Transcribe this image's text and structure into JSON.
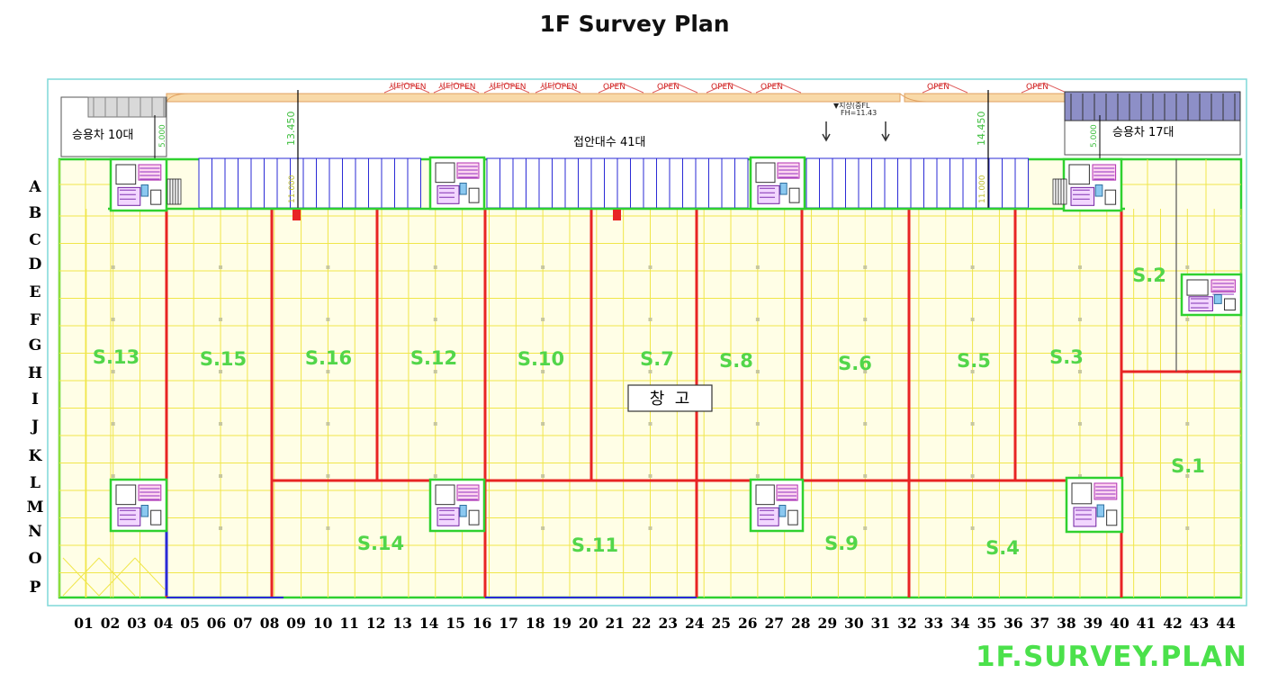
{
  "title": "1F Survey Plan",
  "watermark": "1F.SURVEY.PLAN",
  "rows": [
    "A",
    "B",
    "C",
    "D",
    "E",
    "F",
    "G",
    "H",
    "I",
    "J",
    "K",
    "L",
    "M",
    "N",
    "O",
    "P"
  ],
  "columns": [
    "01",
    "02",
    "03",
    "04",
    "05",
    "06",
    "07",
    "08",
    "09",
    "10",
    "11",
    "12",
    "13",
    "14",
    "15",
    "16",
    "17",
    "18",
    "19",
    "20",
    "21",
    "22",
    "23",
    "24",
    "25",
    "26",
    "27",
    "28",
    "29",
    "30",
    "31",
    "32",
    "33",
    "34",
    "35",
    "36",
    "37",
    "38",
    "39",
    "40",
    "41",
    "42",
    "43",
    "44"
  ],
  "zones": [
    {
      "id": "zone-s13",
      "label": "S.13"
    },
    {
      "id": "zone-s15",
      "label": "S.15"
    },
    {
      "id": "zone-s16",
      "label": "S.16"
    },
    {
      "id": "zone-s12",
      "label": "S.12"
    },
    {
      "id": "zone-s10",
      "label": "S.10"
    },
    {
      "id": "zone-s7",
      "label": "S.7"
    },
    {
      "id": "zone-s8",
      "label": "S.8"
    },
    {
      "id": "zone-s6",
      "label": "S.6"
    },
    {
      "id": "zone-s5",
      "label": "S.5"
    },
    {
      "id": "zone-s3",
      "label": "S.3"
    },
    {
      "id": "zone-s2",
      "label": "S.2"
    },
    {
      "id": "zone-s1",
      "label": "S.1"
    },
    {
      "id": "zone-s14",
      "label": "S.14"
    },
    {
      "id": "zone-s11",
      "label": "S.11"
    },
    {
      "id": "zone-s9",
      "label": "S.9"
    },
    {
      "id": "zone-s4",
      "label": "S.4"
    }
  ],
  "labels": {
    "parking_left": "승용차 10대",
    "parking_right": "승용차 17대",
    "docks": "접안대수 41대",
    "warehouse": "창  고",
    "dim_left": "13.450",
    "dim_right": "14.450",
    "dim_small_left": "5.000",
    "dim_small_right": "5.000",
    "dim_bay": "11.000",
    "ramp_note": "▼지상(중FL",
    "ramp_fl": "FH=11.43",
    "open_label": "OPEN",
    "open_shutter": "셔터OPEN"
  },
  "colors": {
    "grid": "#f0e64a",
    "wall": "#e82424",
    "outline": "#2fd12f",
    "dock": "#2a2ad6",
    "zone_text": "#52d64a",
    "fill": "#fffee6"
  }
}
